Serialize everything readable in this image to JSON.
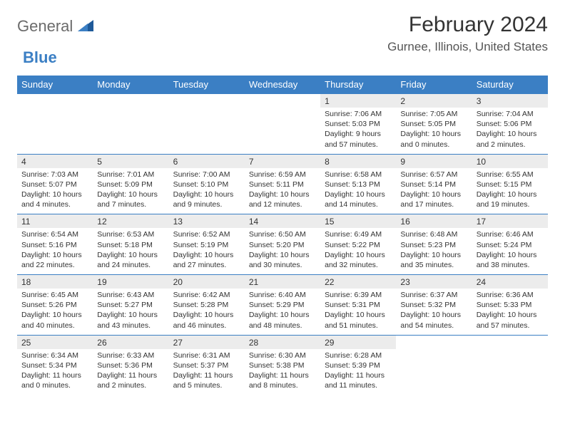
{
  "logo": {
    "text1": "General",
    "text2": "Blue"
  },
  "title": "February 2024",
  "location": "Gurnee, Illinois, United States",
  "colors": {
    "header_bg": "#3b7fc4",
    "header_text": "#ffffff",
    "daynum_bg": "#ececec",
    "row_divider": "#3b7fc4",
    "body_text": "#333333",
    "logo_gray": "#6b6b6b",
    "logo_blue": "#3b7fc4"
  },
  "typography": {
    "title_fontsize": 30,
    "location_fontsize": 17,
    "dayhead_fontsize": 13,
    "daynum_fontsize": 12,
    "detail_fontsize": 10.5
  },
  "day_headers": [
    "Sunday",
    "Monday",
    "Tuesday",
    "Wednesday",
    "Thursday",
    "Friday",
    "Saturday"
  ],
  "weeks": [
    [
      null,
      null,
      null,
      null,
      {
        "num": "1",
        "sunrise": "Sunrise: 7:06 AM",
        "sunset": "Sunset: 5:03 PM",
        "daylight": "Daylight: 9 hours and 57 minutes."
      },
      {
        "num": "2",
        "sunrise": "Sunrise: 7:05 AM",
        "sunset": "Sunset: 5:05 PM",
        "daylight": "Daylight: 10 hours and 0 minutes."
      },
      {
        "num": "3",
        "sunrise": "Sunrise: 7:04 AM",
        "sunset": "Sunset: 5:06 PM",
        "daylight": "Daylight: 10 hours and 2 minutes."
      }
    ],
    [
      {
        "num": "4",
        "sunrise": "Sunrise: 7:03 AM",
        "sunset": "Sunset: 5:07 PM",
        "daylight": "Daylight: 10 hours and 4 minutes."
      },
      {
        "num": "5",
        "sunrise": "Sunrise: 7:01 AM",
        "sunset": "Sunset: 5:09 PM",
        "daylight": "Daylight: 10 hours and 7 minutes."
      },
      {
        "num": "6",
        "sunrise": "Sunrise: 7:00 AM",
        "sunset": "Sunset: 5:10 PM",
        "daylight": "Daylight: 10 hours and 9 minutes."
      },
      {
        "num": "7",
        "sunrise": "Sunrise: 6:59 AM",
        "sunset": "Sunset: 5:11 PM",
        "daylight": "Daylight: 10 hours and 12 minutes."
      },
      {
        "num": "8",
        "sunrise": "Sunrise: 6:58 AM",
        "sunset": "Sunset: 5:13 PM",
        "daylight": "Daylight: 10 hours and 14 minutes."
      },
      {
        "num": "9",
        "sunrise": "Sunrise: 6:57 AM",
        "sunset": "Sunset: 5:14 PM",
        "daylight": "Daylight: 10 hours and 17 minutes."
      },
      {
        "num": "10",
        "sunrise": "Sunrise: 6:55 AM",
        "sunset": "Sunset: 5:15 PM",
        "daylight": "Daylight: 10 hours and 19 minutes."
      }
    ],
    [
      {
        "num": "11",
        "sunrise": "Sunrise: 6:54 AM",
        "sunset": "Sunset: 5:16 PM",
        "daylight": "Daylight: 10 hours and 22 minutes."
      },
      {
        "num": "12",
        "sunrise": "Sunrise: 6:53 AM",
        "sunset": "Sunset: 5:18 PM",
        "daylight": "Daylight: 10 hours and 24 minutes."
      },
      {
        "num": "13",
        "sunrise": "Sunrise: 6:52 AM",
        "sunset": "Sunset: 5:19 PM",
        "daylight": "Daylight: 10 hours and 27 minutes."
      },
      {
        "num": "14",
        "sunrise": "Sunrise: 6:50 AM",
        "sunset": "Sunset: 5:20 PM",
        "daylight": "Daylight: 10 hours and 30 minutes."
      },
      {
        "num": "15",
        "sunrise": "Sunrise: 6:49 AM",
        "sunset": "Sunset: 5:22 PM",
        "daylight": "Daylight: 10 hours and 32 minutes."
      },
      {
        "num": "16",
        "sunrise": "Sunrise: 6:48 AM",
        "sunset": "Sunset: 5:23 PM",
        "daylight": "Daylight: 10 hours and 35 minutes."
      },
      {
        "num": "17",
        "sunrise": "Sunrise: 6:46 AM",
        "sunset": "Sunset: 5:24 PM",
        "daylight": "Daylight: 10 hours and 38 minutes."
      }
    ],
    [
      {
        "num": "18",
        "sunrise": "Sunrise: 6:45 AM",
        "sunset": "Sunset: 5:26 PM",
        "daylight": "Daylight: 10 hours and 40 minutes."
      },
      {
        "num": "19",
        "sunrise": "Sunrise: 6:43 AM",
        "sunset": "Sunset: 5:27 PM",
        "daylight": "Daylight: 10 hours and 43 minutes."
      },
      {
        "num": "20",
        "sunrise": "Sunrise: 6:42 AM",
        "sunset": "Sunset: 5:28 PM",
        "daylight": "Daylight: 10 hours and 46 minutes."
      },
      {
        "num": "21",
        "sunrise": "Sunrise: 6:40 AM",
        "sunset": "Sunset: 5:29 PM",
        "daylight": "Daylight: 10 hours and 48 minutes."
      },
      {
        "num": "22",
        "sunrise": "Sunrise: 6:39 AM",
        "sunset": "Sunset: 5:31 PM",
        "daylight": "Daylight: 10 hours and 51 minutes."
      },
      {
        "num": "23",
        "sunrise": "Sunrise: 6:37 AM",
        "sunset": "Sunset: 5:32 PM",
        "daylight": "Daylight: 10 hours and 54 minutes."
      },
      {
        "num": "24",
        "sunrise": "Sunrise: 6:36 AM",
        "sunset": "Sunset: 5:33 PM",
        "daylight": "Daylight: 10 hours and 57 minutes."
      }
    ],
    [
      {
        "num": "25",
        "sunrise": "Sunrise: 6:34 AM",
        "sunset": "Sunset: 5:34 PM",
        "daylight": "Daylight: 11 hours and 0 minutes."
      },
      {
        "num": "26",
        "sunrise": "Sunrise: 6:33 AM",
        "sunset": "Sunset: 5:36 PM",
        "daylight": "Daylight: 11 hours and 2 minutes."
      },
      {
        "num": "27",
        "sunrise": "Sunrise: 6:31 AM",
        "sunset": "Sunset: 5:37 PM",
        "daylight": "Daylight: 11 hours and 5 minutes."
      },
      {
        "num": "28",
        "sunrise": "Sunrise: 6:30 AM",
        "sunset": "Sunset: 5:38 PM",
        "daylight": "Daylight: 11 hours and 8 minutes."
      },
      {
        "num": "29",
        "sunrise": "Sunrise: 6:28 AM",
        "sunset": "Sunset: 5:39 PM",
        "daylight": "Daylight: 11 hours and 11 minutes."
      },
      null,
      null
    ]
  ]
}
